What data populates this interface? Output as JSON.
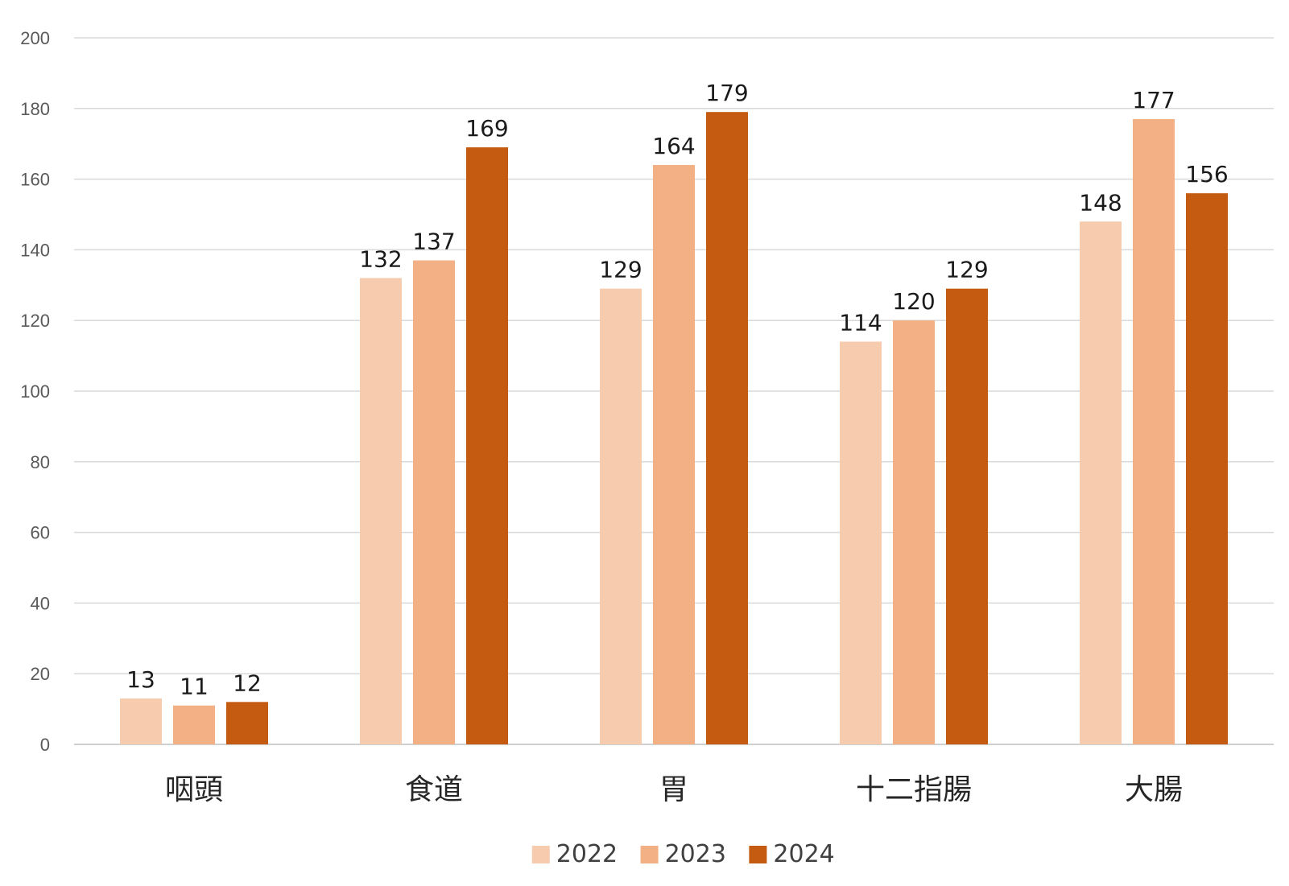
{
  "chart_data": {
    "type": "bar",
    "categories": [
      "咽頭",
      "食道",
      "胃",
      "十二指腸",
      "大腸"
    ],
    "series": [
      {
        "name": "2022",
        "color": "#f7cbad",
        "values": [
          13,
          132,
          129,
          114,
          148
        ]
      },
      {
        "name": "2023",
        "color": "#f2b084",
        "values": [
          11,
          137,
          164,
          120,
          177
        ]
      },
      {
        "name": "2024",
        "color": "#c55a11",
        "values": [
          12,
          169,
          179,
          129,
          156
        ]
      }
    ],
    "ylim": [
      0,
      200
    ],
    "yticks": [
      0,
      20,
      40,
      60,
      80,
      100,
      120,
      140,
      160,
      180,
      200
    ],
    "grid": true,
    "legend_position": "bottom",
    "data_labels": true
  }
}
